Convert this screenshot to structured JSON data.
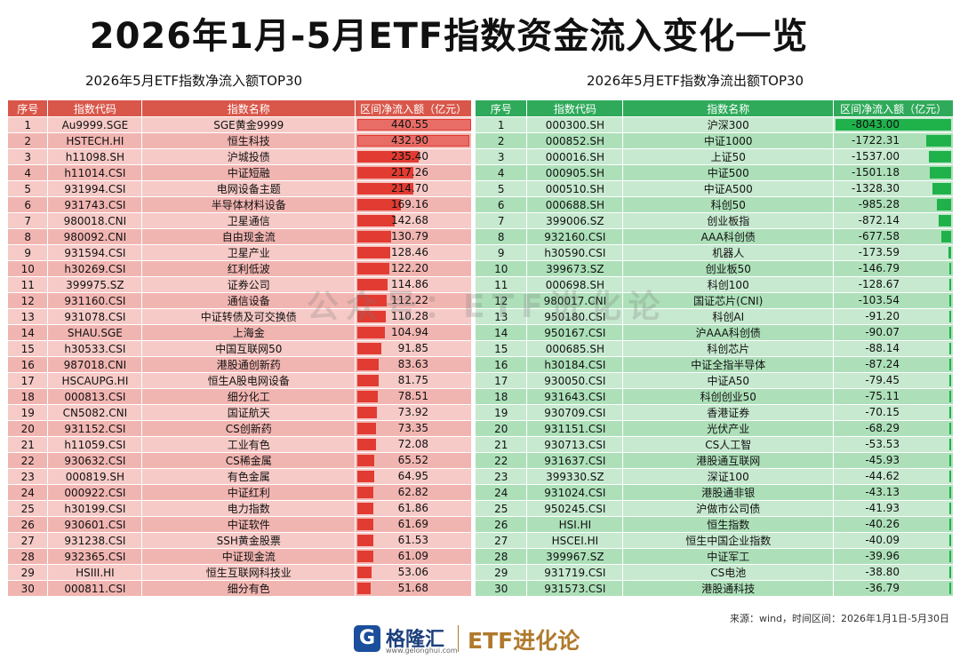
{
  "title": "2026年1月-5月ETF指数资金流入变化一览",
  "left": {
    "subtitle": "2026年5月ETF指数净流入额TOP30",
    "headers": [
      "序号",
      "指数代码",
      "指数名称",
      "区间净流入额（亿元）"
    ],
    "rows": [
      {
        "no": "1",
        "code": "Au9999.SGE",
        "name": "SGE黄金9999",
        "value": "440.55",
        "v": 440.55
      },
      {
        "no": "2",
        "code": "HSTECH.HI",
        "name": "恒生科技",
        "value": "432.90",
        "v": 432.9
      },
      {
        "no": "3",
        "code": "h11098.SH",
        "name": "沪城投债",
        "value": "235.40",
        "v": 235.4
      },
      {
        "no": "4",
        "code": "h11014.CSI",
        "name": "中证短融",
        "value": "217.26",
        "v": 217.26
      },
      {
        "no": "5",
        "code": "931994.CSI",
        "name": "电网设备主题",
        "value": "214.70",
        "v": 214.7
      },
      {
        "no": "6",
        "code": "931743.CSI",
        "name": "半导体材料设备",
        "value": "169.16",
        "v": 169.16
      },
      {
        "no": "7",
        "code": "980018.CNI",
        "name": "卫星通信",
        "value": "142.68",
        "v": 142.68
      },
      {
        "no": "8",
        "code": "980092.CNI",
        "name": "自由现金流",
        "value": "130.79",
        "v": 130.79
      },
      {
        "no": "9",
        "code": "931594.CSI",
        "name": "卫星产业",
        "value": "128.46",
        "v": 128.46
      },
      {
        "no": "10",
        "code": "h30269.CSI",
        "name": "红利低波",
        "value": "122.20",
        "v": 122.2
      },
      {
        "no": "11",
        "code": "399975.SZ",
        "name": "证券公司",
        "value": "114.86",
        "v": 114.86
      },
      {
        "no": "12",
        "code": "931160.CSI",
        "name": "通信设备",
        "value": "112.22",
        "v": 112.22
      },
      {
        "no": "13",
        "code": "931078.CSI",
        "name": "中证转债及可交换债",
        "value": "110.28",
        "v": 110.28
      },
      {
        "no": "14",
        "code": "SHAU.SGE",
        "name": "上海金",
        "value": "104.94",
        "v": 104.94
      },
      {
        "no": "15",
        "code": "h30533.CSI",
        "name": "中国互联网50",
        "value": "91.85",
        "v": 91.85
      },
      {
        "no": "16",
        "code": "987018.CNI",
        "name": "港股通创新药",
        "value": "83.63",
        "v": 83.63
      },
      {
        "no": "17",
        "code": "HSCAUPG.HI",
        "name": "恒生A股电网设备",
        "value": "81.75",
        "v": 81.75
      },
      {
        "no": "18",
        "code": "000813.CSI",
        "name": "细分化工",
        "value": "78.51",
        "v": 78.51
      },
      {
        "no": "19",
        "code": "CN5082.CNI",
        "name": "国证航天",
        "value": "73.92",
        "v": 73.92
      },
      {
        "no": "20",
        "code": "931152.CSI",
        "name": "CS创新药",
        "value": "73.35",
        "v": 73.35
      },
      {
        "no": "21",
        "code": "h11059.CSI",
        "name": "工业有色",
        "value": "72.08",
        "v": 72.08
      },
      {
        "no": "22",
        "code": "930632.CSI",
        "name": "CS稀金属",
        "value": "65.52",
        "v": 65.52
      },
      {
        "no": "23",
        "code": "000819.SH",
        "name": "有色金属",
        "value": "64.95",
        "v": 64.95
      },
      {
        "no": "24",
        "code": "000922.CSI",
        "name": "中证红利",
        "value": "62.82",
        "v": 62.82
      },
      {
        "no": "25",
        "code": "h30199.CSI",
        "name": "电力指数",
        "value": "61.86",
        "v": 61.86
      },
      {
        "no": "26",
        "code": "930601.CSI",
        "name": "中证软件",
        "value": "61.69",
        "v": 61.69
      },
      {
        "no": "27",
        "code": "931238.CSI",
        "name": "SSH黄金股票",
        "value": "61.53",
        "v": 61.53
      },
      {
        "no": "28",
        "code": "932365.CSI",
        "name": "中证现金流",
        "value": "61.09",
        "v": 61.09
      },
      {
        "no": "29",
        "code": "HSIII.HI",
        "name": "恒生互联网科技业",
        "value": "53.06",
        "v": 53.06
      },
      {
        "no": "30",
        "code": "000811.CSI",
        "name": "细分有色",
        "value": "51.68",
        "v": 51.68
      }
    ]
  },
  "right": {
    "subtitle": "2026年5月ETF指数净流出额TOP30",
    "headers": [
      "序号",
      "指数代码",
      "指数名称",
      "区间净流入额（亿元）"
    ],
    "rows": [
      {
        "no": "1",
        "code": "000300.SH",
        "name": "沪深300",
        "value": "-8043.00",
        "v": -8043.0
      },
      {
        "no": "2",
        "code": "000852.SH",
        "name": "中证1000",
        "value": "-1722.31",
        "v": -1722.31
      },
      {
        "no": "3",
        "code": "000016.SH",
        "name": "上证50",
        "value": "-1537.00",
        "v": -1537.0
      },
      {
        "no": "4",
        "code": "000905.SH",
        "name": "中证500",
        "value": "-1501.18",
        "v": -1501.18
      },
      {
        "no": "5",
        "code": "000510.SH",
        "name": "中证A500",
        "value": "-1328.30",
        "v": -1328.3
      },
      {
        "no": "6",
        "code": "000688.SH",
        "name": "科创50",
        "value": "-985.28",
        "v": -985.28
      },
      {
        "no": "7",
        "code": "399006.SZ",
        "name": "创业板指",
        "value": "-872.14",
        "v": -872.14
      },
      {
        "no": "8",
        "code": "932160.CSI",
        "name": "AAA科创债",
        "value": "-677.58",
        "v": -677.58
      },
      {
        "no": "9",
        "code": "h30590.CSI",
        "name": "机器人",
        "value": "-173.59",
        "v": -173.59
      },
      {
        "no": "10",
        "code": "399673.SZ",
        "name": "创业板50",
        "value": "-146.79",
        "v": -146.79
      },
      {
        "no": "11",
        "code": "000698.SH",
        "name": "科创100",
        "value": "-128.67",
        "v": -128.67
      },
      {
        "no": "12",
        "code": "980017.CNI",
        "name": "国证芯片(CNI)",
        "value": "-103.54",
        "v": -103.54
      },
      {
        "no": "13",
        "code": "950180.CSI",
        "name": "科创AI",
        "value": "-91.20",
        "v": -91.2
      },
      {
        "no": "14",
        "code": "950167.CSI",
        "name": "沪AAA科创债",
        "value": "-90.07",
        "v": -90.07
      },
      {
        "no": "15",
        "code": "000685.SH",
        "name": "科创芯片",
        "value": "-88.14",
        "v": -88.14
      },
      {
        "no": "16",
        "code": "h30184.CSI",
        "name": "中证全指半导体",
        "value": "-87.24",
        "v": -87.24
      },
      {
        "no": "17",
        "code": "930050.CSI",
        "name": "中证A50",
        "value": "-79.45",
        "v": -79.45
      },
      {
        "no": "18",
        "code": "931643.CSI",
        "name": "科创创业50",
        "value": "-75.11",
        "v": -75.11
      },
      {
        "no": "19",
        "code": "930709.CSI",
        "name": "香港证券",
        "value": "-70.15",
        "v": -70.15
      },
      {
        "no": "20",
        "code": "931151.CSI",
        "name": "光伏产业",
        "value": "-68.29",
        "v": -68.29
      },
      {
        "no": "21",
        "code": "930713.CSI",
        "name": "CS人工智",
        "value": "-53.53",
        "v": -53.53
      },
      {
        "no": "22",
        "code": "931637.CSI",
        "name": "港股通互联网",
        "value": "-45.93",
        "v": -45.93
      },
      {
        "no": "23",
        "code": "399330.SZ",
        "name": "深证100",
        "value": "-44.62",
        "v": -44.62
      },
      {
        "no": "24",
        "code": "931024.CSI",
        "name": "港股通非银",
        "value": "-43.13",
        "v": -43.13
      },
      {
        "no": "25",
        "code": "950245.CSI",
        "name": "沪做市公司债",
        "value": "-41.93",
        "v": -41.93
      },
      {
        "no": "26",
        "code": "HSI.HI",
        "name": "恒生指数",
        "value": "-40.26",
        "v": -40.26
      },
      {
        "no": "27",
        "code": "HSCEI.HI",
        "name": "恒生中国企业指数",
        "value": "-40.09",
        "v": -40.09
      },
      {
        "no": "28",
        "code": "399967.SZ",
        "name": "中证军工",
        "value": "-39.96",
        "v": -39.96
      },
      {
        "no": "29",
        "code": "931719.CSI",
        "name": "CS电池",
        "value": "-38.80",
        "v": -38.8
      },
      {
        "no": "30",
        "code": "931573.CSI",
        "name": "港股通科技",
        "value": "-36.79",
        "v": -36.79
      }
    ]
  },
  "watermark": "公众号：ETF进化论",
  "source": "来源：wind，时间区间：2026年1月1日-5月30日",
  "footer": {
    "logo_glyph": "G",
    "logo_name": "格隆汇",
    "logo_url": "www.gelonghui.com",
    "brand": "ETF进化论"
  },
  "colors": {
    "inflow_header": "#d9574a",
    "inflow_bar": "#e23b32",
    "outflow_header": "#2faa5a",
    "outflow_bar": "#1fb24b"
  }
}
